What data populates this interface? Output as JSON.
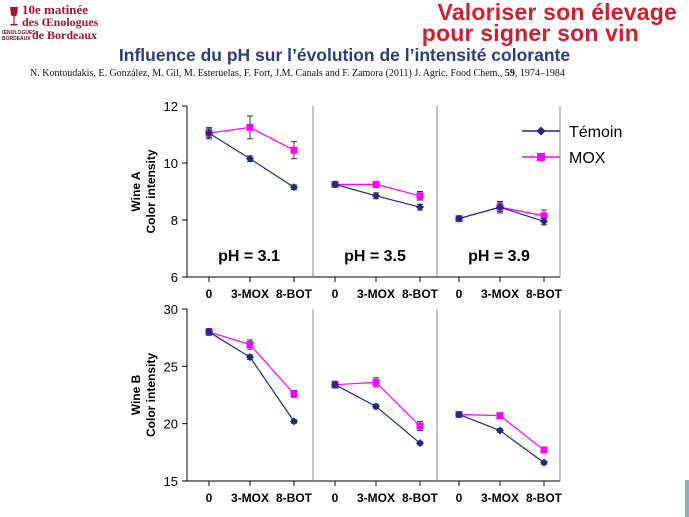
{
  "header": {
    "logo_line1": "10e matinée",
    "logo_line2": "des Œnologues",
    "logo_line3": "de Bordeaux",
    "logo_small": "ŒNOLOGUES BORDEAUX",
    "slogan_line1": "Valoriser son élevage",
    "slogan_line2": "pour signer son vin",
    "brand_color": "#c8102e"
  },
  "title": "Influence du pH sur l’évolution de l’intensité colorante",
  "citation": {
    "authors": "N. Kontoudakis, E. González, M. Gil, M. Esteruelas, F. Fort, J.M. Canals and F. Zamora (2011) J. Agric. Food Chem., ",
    "volume": "59",
    "pages": ", 1974–1984"
  },
  "chart_data": {
    "type": "line",
    "categories": [
      "0",
      "3-MOX",
      "8-BOT"
    ],
    "legend": [
      "Témoin",
      "MOX"
    ],
    "legend_position": "top-right",
    "series_colors": {
      "Témoin": "#1e2a80",
      "MOX": "#ff00ff"
    },
    "series_markers": {
      "Témoin": "diamond",
      "MOX": "square"
    },
    "rows": [
      {
        "ylabel_line1": "Wine A",
        "ylabel_line2": "Color intensity",
        "ylim": [
          6,
          12
        ],
        "yticks": [
          "6",
          "8",
          "10",
          "12"
        ],
        "panels": [
          {
            "label": "pH = 3.1",
            "series": [
              {
                "name": "Témoin",
                "values": [
                  11.05,
                  10.15,
                  9.15
                ],
                "errors": [
                  0.15,
                  0.1,
                  0.08
                ]
              },
              {
                "name": "MOX",
                "values": [
                  11.05,
                  11.25,
                  10.45
                ],
                "errors": [
                  0.2,
                  0.4,
                  0.3
                ]
              }
            ]
          },
          {
            "label": "pH = 3.5",
            "series": [
              {
                "name": "Témoin",
                "values": [
                  9.25,
                  8.85,
                  8.45
                ],
                "errors": [
                  0.08,
                  0.1,
                  0.1
                ]
              },
              {
                "name": "MOX",
                "values": [
                  9.25,
                  9.25,
                  8.85
                ],
                "errors": [
                  0.1,
                  0.1,
                  0.15
                ]
              }
            ]
          },
          {
            "label": "pH = 3.9",
            "series": [
              {
                "name": "Témoin",
                "values": [
                  8.05,
                  8.45,
                  7.95
                ],
                "errors": [
                  0.08,
                  0.2,
                  0.12
                ]
              },
              {
                "name": "MOX",
                "values": [
                  8.05,
                  8.45,
                  8.15
                ],
                "errors": [
                  0.08,
                  0.15,
                  0.2
                ]
              }
            ]
          }
        ]
      },
      {
        "ylabel_line1": "Wine B",
        "ylabel_line2": "Color intensity",
        "ylim": [
          15,
          30
        ],
        "yticks": [
          "15",
          "20",
          "25",
          "30"
        ],
        "panels": [
          {
            "series": [
              {
                "name": "Témoin",
                "values": [
                  28.0,
                  25.8,
                  20.2
                ],
                "errors": [
                  0.2,
                  0.2,
                  0.15
                ]
              },
              {
                "name": "MOX",
                "values": [
                  28.0,
                  26.9,
                  22.6
                ],
                "errors": [
                  0.3,
                  0.4,
                  0.3
                ]
              }
            ]
          },
          {
            "series": [
              {
                "name": "Témoin",
                "values": [
                  23.4,
                  21.5,
                  18.3
                ],
                "errors": [
                  0.2,
                  0.2,
                  0.15
                ]
              },
              {
                "name": "MOX",
                "values": [
                  23.4,
                  23.6,
                  19.8
                ],
                "errors": [
                  0.3,
                  0.4,
                  0.4
                ]
              }
            ]
          },
          {
            "series": [
              {
                "name": "Témoin",
                "values": [
                  20.8,
                  19.4,
                  16.6
                ],
                "errors": [
                  0.15,
                  0.15,
                  0.15
                ]
              },
              {
                "name": "MOX",
                "values": [
                  20.8,
                  20.7,
                  17.7
                ],
                "errors": [
                  0.2,
                  0.2,
                  0.2
                ]
              }
            ]
          }
        ]
      }
    ]
  }
}
